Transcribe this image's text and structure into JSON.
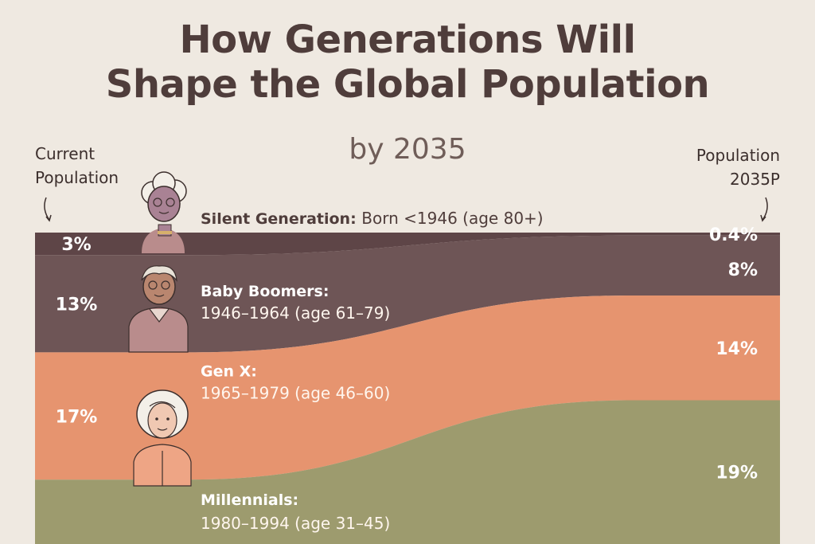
{
  "title_line1": "How Generations Will",
  "title_line2": "Shape the Global Population",
  "subtitle": "by 2035",
  "left_label_line1": "Current",
  "left_label_line2": "Population",
  "right_label_line1": "Population",
  "right_label_line2": "2035P",
  "chart_data": {
    "type": "area",
    "x": [
      "Current",
      "2035P"
    ],
    "series": [
      {
        "name": "Silent Generation",
        "label": "Silent Generation:",
        "range": "Born <1946 (age 80+)",
        "values": [
          3,
          0.4
        ],
        "value_labels": [
          "3%",
          "0.4%"
        ],
        "color": "#5e4547"
      },
      {
        "name": "Baby Boomers",
        "label": "Baby Boomers:",
        "range": "1946–1964 (age 61–79)",
        "values": [
          13,
          8
        ],
        "value_labels": [
          "13%",
          "8%"
        ],
        "color": "#6e5556"
      },
      {
        "name": "Gen X",
        "label": "Gen X:",
        "range": "1965–1979 (age 46–60)",
        "values": [
          17,
          14
        ],
        "value_labels": [
          "17%",
          "14%"
        ],
        "color": "#e6946f"
      },
      {
        "name": "Millennials",
        "label": "Millennials:",
        "range": "1980–1994 (age 31–45)",
        "values": [
          null,
          19
        ],
        "value_labels": [
          "",
          "19%"
        ],
        "color": "#9d9b6e"
      }
    ]
  }
}
